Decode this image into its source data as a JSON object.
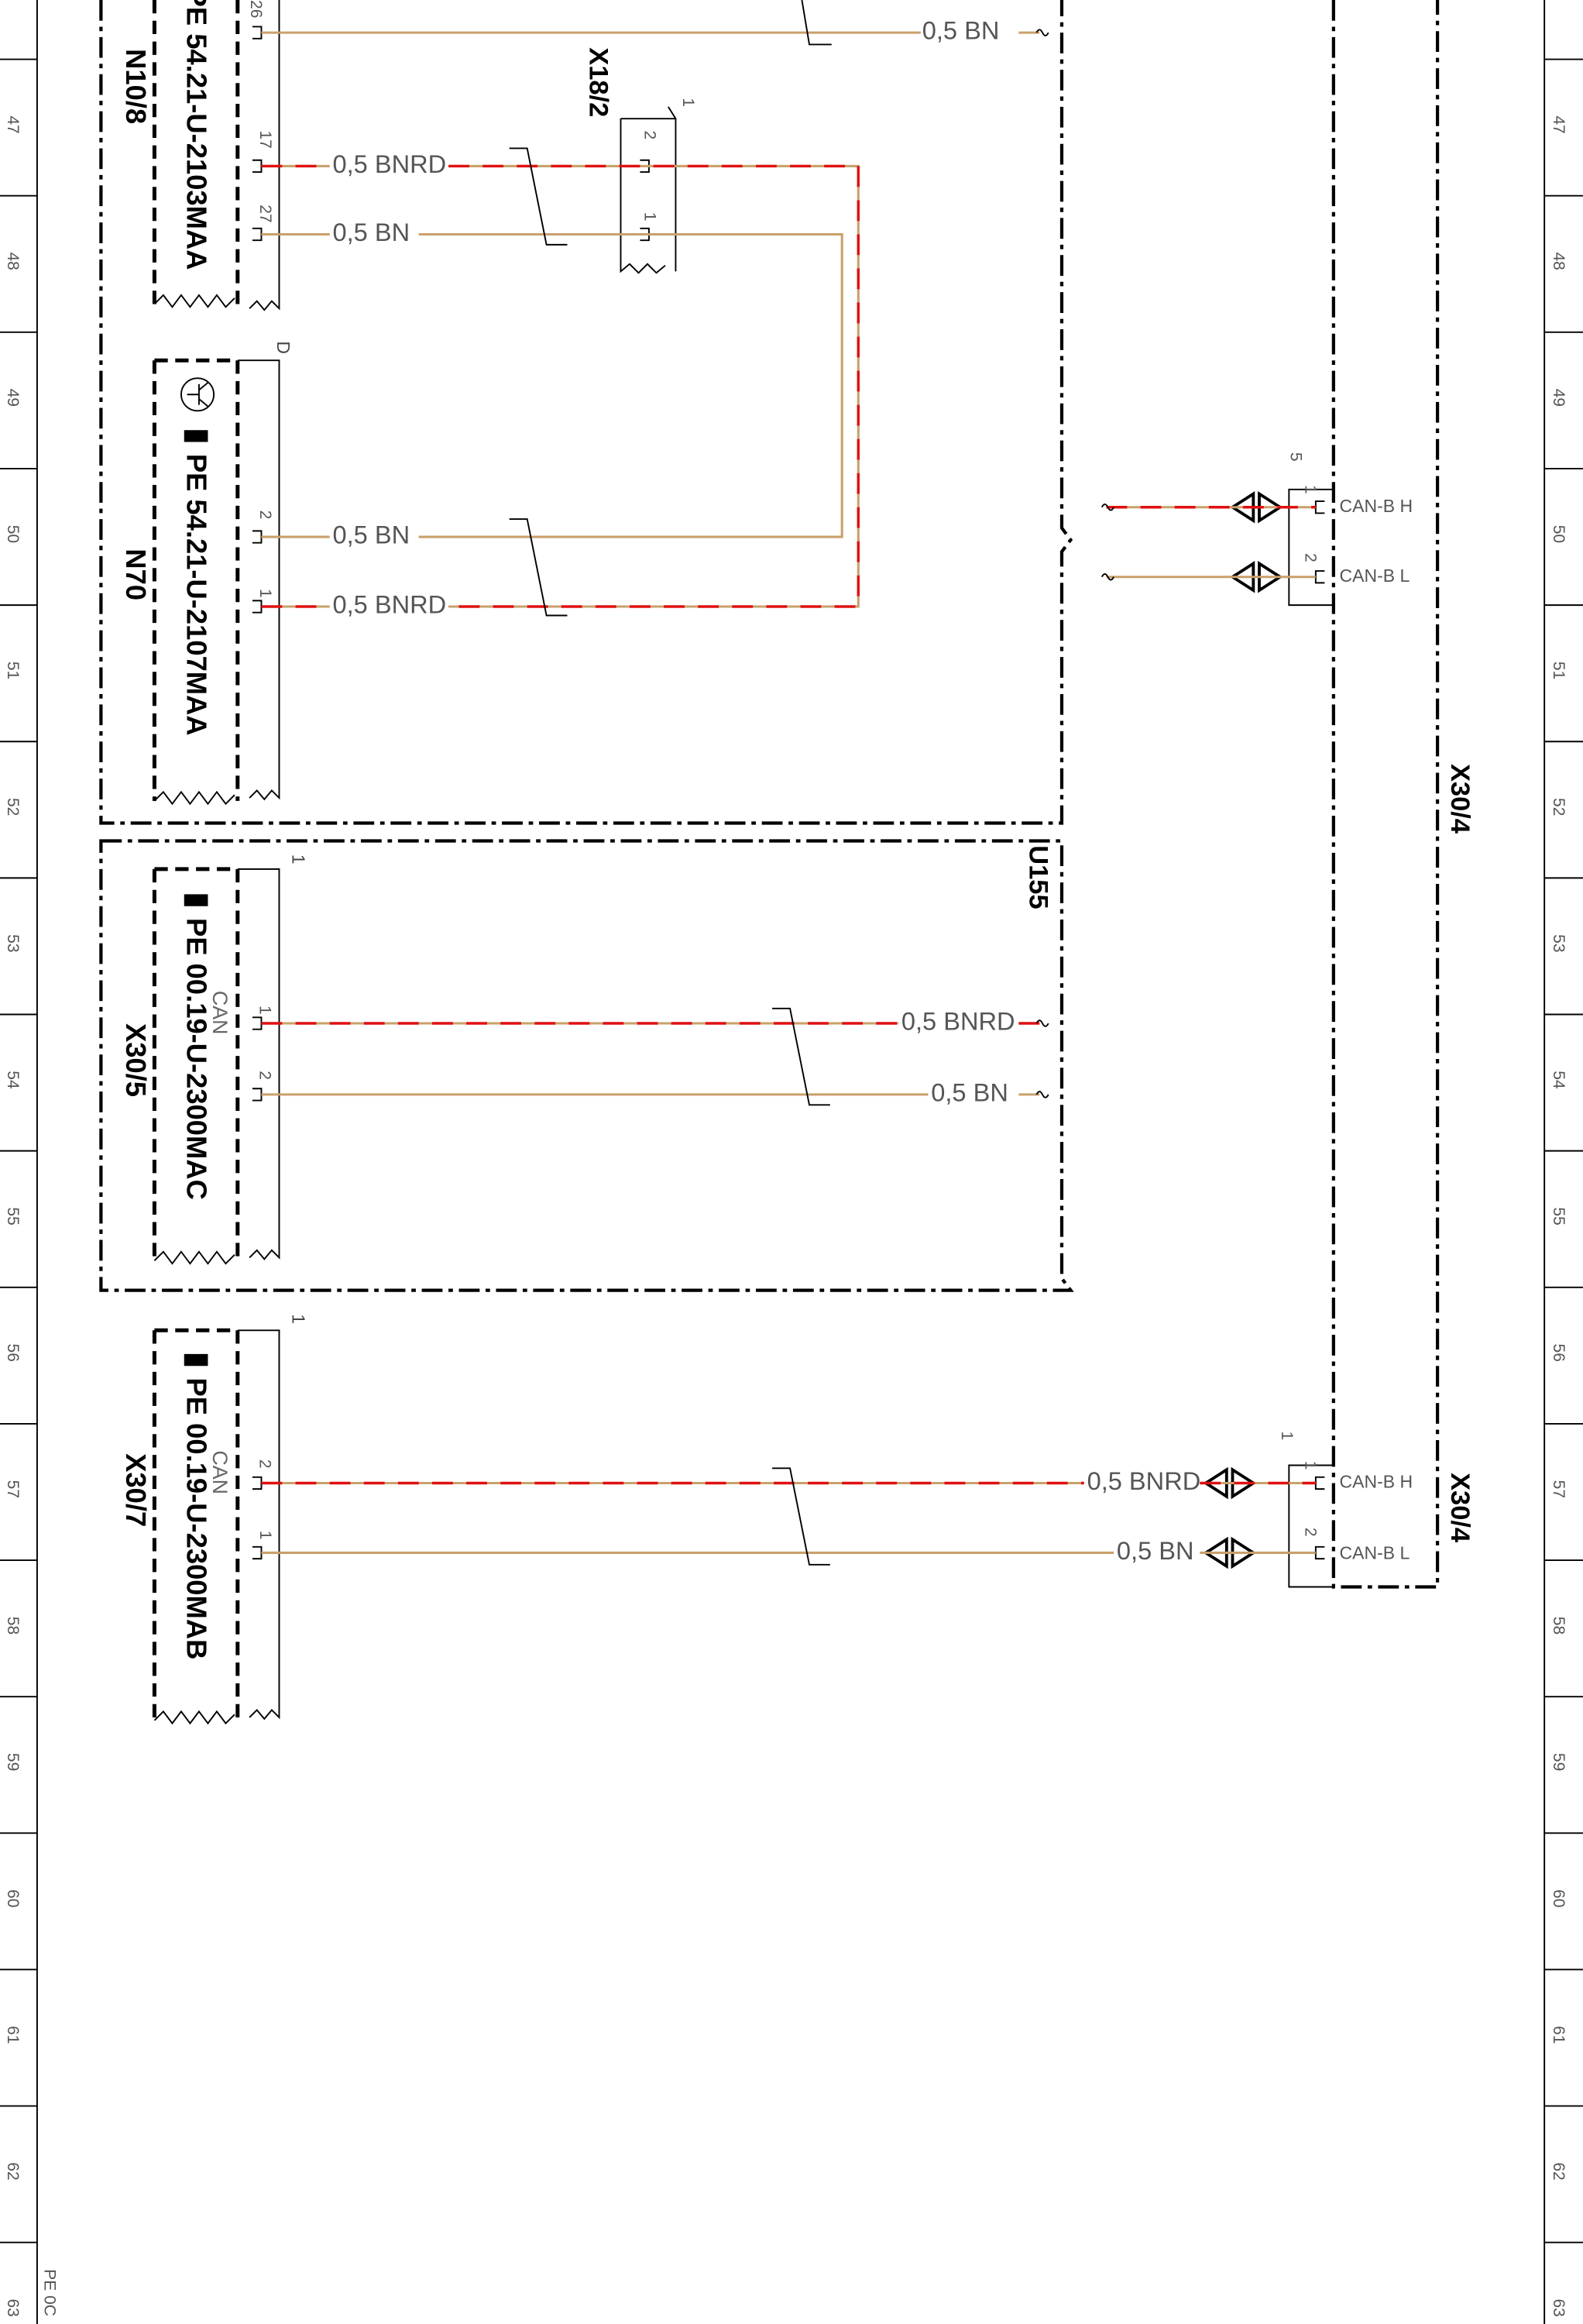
{
  "border": {
    "zones": [
      "47",
      "48",
      "49",
      "50",
      "51",
      "52",
      "53",
      "54",
      "55",
      "56",
      "57",
      "58",
      "59",
      "60",
      "61",
      "62",
      "63"
    ],
    "footer": "PE 0C"
  },
  "modules": [
    {
      "code": "PE 54.21-U-2103MAA",
      "name": "N10/8",
      "pins": [
        "26",
        "17",
        "27"
      ]
    },
    {
      "code": "PE 54.21-U-2107MAA",
      "name": "N70",
      "marker": "D",
      "pins": [
        "2",
        "1"
      ]
    },
    {
      "code": "PE 00.19-U-2300MAC",
      "name": "X30/5",
      "bus": "CAN",
      "marker": "1",
      "pins": [
        "1",
        "2"
      ]
    },
    {
      "code": "PE 00.19-U-2300MAB",
      "name": "X30/7",
      "bus": "CAN",
      "marker": "1",
      "pins": [
        "2",
        "1"
      ]
    }
  ],
  "connectors": [
    {
      "name": "X18/2",
      "marker": "1",
      "pins": [
        "2",
        "1"
      ]
    },
    {
      "name": "X30/4",
      "marker": "5",
      "pins": [
        "1",
        "2"
      ],
      "signals": [
        "CAN-B H",
        "CAN-B L"
      ]
    },
    {
      "name": "X30/4",
      "marker": "1",
      "pins": [
        "1",
        "2"
      ],
      "signals": [
        "CAN-B H",
        "CAN-B L"
      ]
    }
  ],
  "enclosure": "U155",
  "wires": [
    {
      "label": "0,5 BN"
    },
    {
      "label": "0,5 BNRD"
    },
    {
      "label": "0,5 BN"
    },
    {
      "label": "0,5 BN"
    },
    {
      "label": "0,5 BNRD"
    },
    {
      "label": "0,5 BNRD"
    },
    {
      "label": "0,5 BN"
    },
    {
      "label": "0,5 BNRD"
    },
    {
      "label": "0,5 BN"
    }
  ]
}
